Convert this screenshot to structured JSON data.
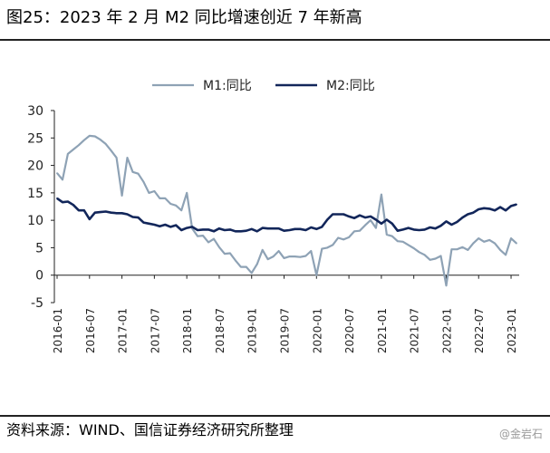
{
  "page": {
    "title": "图25：2023 年 2 月 M2 同比增速创近 7 年新高",
    "source": "资料来源：WIND、国信证券经济研究所整理",
    "watermark": "@金岩石"
  },
  "chart_data": {
    "type": "line",
    "title": "",
    "xlabel": "",
    "ylabel": "",
    "ylim": [
      -5,
      30
    ],
    "yticks": [
      -5,
      0,
      5,
      10,
      15,
      20,
      25,
      30
    ],
    "x_tick_labels": [
      "2016-01",
      "2016-07",
      "2017-01",
      "2017-07",
      "2018-01",
      "2018-07",
      "2019-01",
      "2019-07",
      "2020-01",
      "2020-07",
      "2021-01",
      "2021-07",
      "2022-01",
      "2022-07",
      "2023-01"
    ],
    "legend_position": "top-center",
    "grid": false,
    "x": [
      "2016-01",
      "2016-02",
      "2016-03",
      "2016-04",
      "2016-05",
      "2016-06",
      "2016-07",
      "2016-08",
      "2016-09",
      "2016-10",
      "2016-11",
      "2016-12",
      "2017-01",
      "2017-02",
      "2017-03",
      "2017-04",
      "2017-05",
      "2017-06",
      "2017-07",
      "2017-08",
      "2017-09",
      "2017-10",
      "2017-11",
      "2017-12",
      "2018-01",
      "2018-02",
      "2018-03",
      "2018-04",
      "2018-05",
      "2018-06",
      "2018-07",
      "2018-08",
      "2018-09",
      "2018-10",
      "2018-11",
      "2018-12",
      "2019-01",
      "2019-02",
      "2019-03",
      "2019-04",
      "2019-05",
      "2019-06",
      "2019-07",
      "2019-08",
      "2019-09",
      "2019-10",
      "2019-11",
      "2019-12",
      "2020-01",
      "2020-02",
      "2020-03",
      "2020-04",
      "2020-05",
      "2020-06",
      "2020-07",
      "2020-08",
      "2020-09",
      "2020-10",
      "2020-11",
      "2020-12",
      "2021-01",
      "2021-02",
      "2021-03",
      "2021-04",
      "2021-05",
      "2021-06",
      "2021-07",
      "2021-08",
      "2021-09",
      "2021-10",
      "2021-11",
      "2021-12",
      "2022-01",
      "2022-02",
      "2022-03",
      "2022-04",
      "2022-05",
      "2022-06",
      "2022-07",
      "2022-08",
      "2022-09",
      "2022-10",
      "2022-11",
      "2022-12",
      "2023-01",
      "2023-02"
    ],
    "series": [
      {
        "name": "M1:同比",
        "color": "#8ea2b5",
        "values": [
          18.6,
          17.4,
          22.1,
          22.9,
          23.7,
          24.6,
          25.4,
          25.3,
          24.7,
          23.9,
          22.7,
          21.4,
          14.5,
          21.4,
          18.8,
          18.5,
          17.0,
          15.0,
          15.3,
          14.0,
          14.0,
          13.0,
          12.7,
          11.8,
          15.0,
          8.5,
          7.1,
          7.2,
          6.0,
          6.6,
          5.1,
          3.9,
          4.0,
          2.7,
          1.5,
          1.5,
          0.4,
          2.0,
          4.6,
          2.9,
          3.4,
          4.4,
          3.1,
          3.4,
          3.4,
          3.3,
          3.5,
          4.4,
          0.0,
          4.8,
          5.0,
          5.5,
          6.8,
          6.5,
          6.9,
          8.0,
          8.1,
          9.1,
          10.0,
          8.6,
          14.7,
          7.4,
          7.1,
          6.2,
          6.1,
          5.5,
          4.9,
          4.2,
          3.7,
          2.8,
          3.0,
          3.5,
          -1.9,
          4.7,
          4.7,
          5.1,
          4.6,
          5.8,
          6.7,
          6.1,
          6.4,
          5.8,
          4.6,
          3.7,
          6.7,
          5.8
        ]
      },
      {
        "name": "M2:同比",
        "color": "#12265a",
        "values": [
          14.0,
          13.3,
          13.4,
          12.8,
          11.8,
          11.8,
          10.2,
          11.4,
          11.5,
          11.6,
          11.4,
          11.3,
          11.3,
          11.1,
          10.6,
          10.5,
          9.6,
          9.4,
          9.2,
          8.9,
          9.2,
          8.8,
          9.1,
          8.2,
          8.6,
          8.8,
          8.2,
          8.3,
          8.3,
          8.0,
          8.5,
          8.2,
          8.3,
          8.0,
          8.0,
          8.1,
          8.4,
          8.0,
          8.6,
          8.5,
          8.5,
          8.5,
          8.1,
          8.2,
          8.4,
          8.4,
          8.2,
          8.7,
          8.4,
          8.8,
          10.1,
          11.1,
          11.1,
          11.1,
          10.7,
          10.4,
          10.9,
          10.5,
          10.7,
          10.1,
          9.4,
          10.1,
          9.4,
          8.1,
          8.3,
          8.6,
          8.3,
          8.2,
          8.3,
          8.7,
          8.5,
          9.0,
          9.8,
          9.2,
          9.7,
          10.5,
          11.1,
          11.4,
          12.0,
          12.2,
          12.1,
          11.8,
          12.4,
          11.8,
          12.6,
          12.9
        ]
      }
    ]
  }
}
